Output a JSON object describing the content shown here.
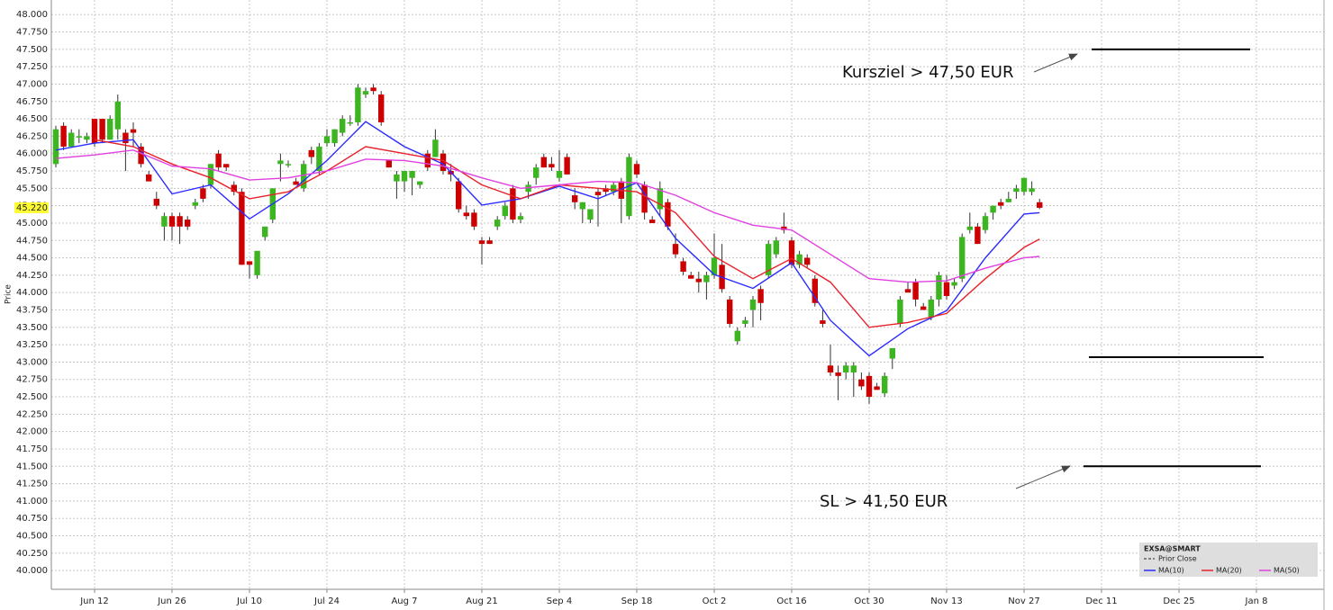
{
  "chart_data": {
    "type": "candlestick",
    "ylabel": "Price",
    "ylim": [
      39.73,
      48.21
    ],
    "yticks": [
      {
        "value": 40,
        "label": "40.000"
      },
      {
        "value": 40.25,
        "label": "40.250"
      },
      {
        "value": 40.5,
        "label": "40.500"
      },
      {
        "value": 40.75,
        "label": "40.750"
      },
      {
        "value": 41,
        "label": "41.000"
      },
      {
        "value": 41.25,
        "label": "41.250"
      },
      {
        "value": 41.5,
        "label": "41.500"
      },
      {
        "value": 41.75,
        "label": "41.750"
      },
      {
        "value": 42,
        "label": "42.000"
      },
      {
        "value": 42.25,
        "label": "42.250"
      },
      {
        "value": 42.5,
        "label": "42.500"
      },
      {
        "value": 42.75,
        "label": "42.750"
      },
      {
        "value": 43,
        "label": "43.000"
      },
      {
        "value": 43.25,
        "label": "43.250"
      },
      {
        "value": 43.5,
        "label": "43.500"
      },
      {
        "value": 43.75,
        "label": "43.750"
      },
      {
        "value": 44,
        "label": "44.000"
      },
      {
        "value": 44.25,
        "label": "44.250"
      },
      {
        "value": 44.5,
        "label": "44.500"
      },
      {
        "value": 44.75,
        "label": "44.750"
      },
      {
        "value": 45,
        "label": "45.000"
      },
      {
        "value": 45.25,
        "label": "45.250"
      },
      {
        "value": 45.5,
        "label": "45.500"
      },
      {
        "value": 45.75,
        "label": "45.750"
      },
      {
        "value": 46,
        "label": "46.000"
      },
      {
        "value": 46.25,
        "label": "46.250"
      },
      {
        "value": 46.5,
        "label": "46.500"
      },
      {
        "value": 46.75,
        "label": "46.750"
      },
      {
        "value": 47,
        "label": "47.000"
      },
      {
        "value": 47.25,
        "label": "47.250"
      },
      {
        "value": 47.5,
        "label": "47.500"
      },
      {
        "value": 47.75,
        "label": "47.750"
      },
      {
        "value": 48,
        "label": "48.000"
      }
    ],
    "xticks": [
      "Jun 12",
      "Jun 26",
      "Jul 10",
      "Jul 24",
      "Aug 7",
      "Aug 21",
      "Sep 4",
      "Sep 18",
      "Oct 2",
      "Oct 16",
      "Oct 30",
      "Nov 13",
      "Nov 27",
      "Dec 11",
      "Dec 25",
      "Jan 8"
    ],
    "grid": true,
    "up_color": "#3cb521",
    "down_color": "#cc0000",
    "x": [
      "Jun 5",
      "Jun 6",
      "Jun 7",
      "Jun 8",
      "Jun 9",
      "Jun 12",
      "Jun 13",
      "Jun 14",
      "Jun 15",
      "Jun 16",
      "Jun 19",
      "Jun 20",
      "Jun 21",
      "Jun 22",
      "Jun 23",
      "Jun 26",
      "Jun 27",
      "Jun 28",
      "Jun 29",
      "Jun 30",
      "Jul 3",
      "Jul 4",
      "Jul 5",
      "Jul 6",
      "Jul 7",
      "Jul 10",
      "Jul 11",
      "Jul 12",
      "Jul 13",
      "Jul 14",
      "Jul 17",
      "Jul 18",
      "Jul 19",
      "Jul 20",
      "Jul 21",
      "Jul 24",
      "Jul 25",
      "Jul 26",
      "Jul 27",
      "Jul 28",
      "Jul 31",
      "Aug 1",
      "Aug 2",
      "Aug 3",
      "Aug 4",
      "Aug 7",
      "Aug 8",
      "Aug 9",
      "Aug 10",
      "Aug 11",
      "Aug 14",
      "Aug 15",
      "Aug 16",
      "Aug 17",
      "Aug 18",
      "Aug 21",
      "Aug 22",
      "Aug 23",
      "Aug 24",
      "Aug 25",
      "Aug 28",
      "Aug 29",
      "Aug 30",
      "Aug 31",
      "Sep 1",
      "Sep 4",
      "Sep 5",
      "Sep 6",
      "Sep 7",
      "Sep 8",
      "Sep 11",
      "Sep 12",
      "Sep 13",
      "Sep 14",
      "Sep 15",
      "Sep 18",
      "Sep 19",
      "Sep 20",
      "Sep 21",
      "Sep 22",
      "Sep 25",
      "Sep 26",
      "Sep 27",
      "Sep 28",
      "Sep 29",
      "Oct 2",
      "Oct 3",
      "Oct 4",
      "Oct 5",
      "Oct 6",
      "Oct 9",
      "Oct 10",
      "Oct 11",
      "Oct 12",
      "Oct 13",
      "Oct 16",
      "Oct 17",
      "Oct 18",
      "Oct 19",
      "Oct 20",
      "Oct 23",
      "Oct 24",
      "Oct 25",
      "Oct 26",
      "Oct 27",
      "Oct 30",
      "Oct 31",
      "Nov 1",
      "Nov 2",
      "Nov 3",
      "Nov 6",
      "Nov 7",
      "Nov 8",
      "Nov 9",
      "Nov 10",
      "Nov 13",
      "Nov 14",
      "Nov 15",
      "Nov 16",
      "Nov 17",
      "Nov 20",
      "Nov 21",
      "Nov 22",
      "Nov 23",
      "Nov 24",
      "Nov 27",
      "Nov 28",
      "Nov 29"
    ],
    "open": [
      45.85,
      46.4,
      46.1,
      46.25,
      46.2,
      46.5,
      46.5,
      46.2,
      46.35,
      46.3,
      46.35,
      46.1,
      45.7,
      45.35,
      44.95,
      45.1,
      45.1,
      45.05,
      45.25,
      45.5,
      45.55,
      46.0,
      45.85,
      45.55,
      45.45,
      44.45,
      44.25,
      44.8,
      45.05,
      45.85,
      45.85,
      45.6,
      45.5,
      46.05,
      45.75,
      46.15,
      46.15,
      46.3,
      46.45,
      46.45,
      46.85,
      46.95,
      46.85,
      45.9,
      45.6,
      45.6,
      45.65,
      45.55,
      46.0,
      45.95,
      46.0,
      45.75,
      45.6,
      45.15,
      45.15,
      44.75,
      44.75,
      44.95,
      45.1,
      45.5,
      45.05,
      45.45,
      45.65,
      45.95,
      45.85,
      45.65,
      45.95,
      45.4,
      45.2,
      45.05,
      45.45,
      45.5,
      45.45,
      45.6,
      45.1,
      45.85,
      45.55,
      45.05,
      45.2,
      45.3,
      44.7,
      44.45,
      44.25,
      44.2,
      44.15,
      44.25,
      44.4,
      43.9,
      43.3,
      43.55,
      43.75,
      44.05,
      44.25,
      44.55,
      44.95,
      44.75,
      44.4,
      44.5,
      44.2,
      43.6,
      42.95,
      42.85,
      42.85,
      42.85,
      42.75,
      42.8,
      42.65,
      42.55,
      43.05,
      43.55,
      44.05,
      44.15,
      43.8,
      43.65,
      43.9,
      44.15,
      44.1,
      44.2,
      44.9,
      44.95,
      44.9,
      45.15,
      45.3,
      45.3,
      45.45,
      45.45,
      45.45,
      45.3
    ],
    "high": [
      46.4,
      46.45,
      46.35,
      46.35,
      46.3,
      46.5,
      46.5,
      46.55,
      46.85,
      46.35,
      46.45,
      46.15,
      45.75,
      45.45,
      45.15,
      45.15,
      45.15,
      45.1,
      45.35,
      45.55,
      45.85,
      46.05,
      45.85,
      45.6,
      45.5,
      44.45,
      44.6,
      44.95,
      45.5,
      46.0,
      45.9,
      45.65,
      45.9,
      46.1,
      46.15,
      46.35,
      46.35,
      46.55,
      46.55,
      47.0,
      46.95,
      47.0,
      46.9,
      45.9,
      45.75,
      45.75,
      45.75,
      45.6,
      46.05,
      46.35,
      46.05,
      45.85,
      45.65,
      45.25,
      45.2,
      44.8,
      44.8,
      45.1,
      45.3,
      45.55,
      45.15,
      45.6,
      45.85,
      46.0,
      45.95,
      46.05,
      46.0,
      45.5,
      45.3,
      45.2,
      45.5,
      45.55,
      45.6,
      45.65,
      46.0,
      45.9,
      45.6,
      45.1,
      45.6,
      45.35,
      44.85,
      44.5,
      44.3,
      44.3,
      44.3,
      44.85,
      44.7,
      43.95,
      43.5,
      43.65,
      43.95,
      44.1,
      44.75,
      44.8,
      45.15,
      44.8,
      44.6,
      44.55,
      44.25,
      43.75,
      43.25,
      42.95,
      43.0,
      43.0,
      42.85,
      42.85,
      42.7,
      42.85,
      43.2,
      43.95,
      44.15,
      44.2,
      43.85,
      43.95,
      44.3,
      44.25,
      44.2,
      44.85,
      45.15,
      45.0,
      45.15,
      45.25,
      45.35,
      45.45,
      45.55,
      45.65,
      45.6,
      45.35
    ],
    "low": [
      45.8,
      46.05,
      46.1,
      46.15,
      46.15,
      46.1,
      46.15,
      46.2,
      46.2,
      45.75,
      46.1,
      45.8,
      45.6,
      45.2,
      44.75,
      44.75,
      44.7,
      44.9,
      45.2,
      45.3,
      45.5,
      45.75,
      45.75,
      45.4,
      44.4,
      44.2,
      44.2,
      44.75,
      45.0,
      45.6,
      45.8,
      45.55,
      45.45,
      45.85,
      45.7,
      46.1,
      46.1,
      46.25,
      46.4,
      46.4,
      46.8,
      46.85,
      46.4,
      45.8,
      45.35,
      45.45,
      45.4,
      45.5,
      45.75,
      45.95,
      45.7,
      45.6,
      45.15,
      45.05,
      44.9,
      44.4,
      44.7,
      44.9,
      45.05,
      45.0,
      45.0,
      45.35,
      45.55,
      45.8,
      45.75,
      45.6,
      45.7,
      45.2,
      45.0,
      45.0,
      44.95,
      45.4,
      45.4,
      45.0,
      45.05,
      45.65,
      45.05,
      45.0,
      45.1,
      44.9,
      44.5,
      44.25,
      44.2,
      44.0,
      43.9,
      44.2,
      44.0,
      43.5,
      43.25,
      43.5,
      43.5,
      43.6,
      44.2,
      44.5,
      44.85,
      44.35,
      44.35,
      44.35,
      43.8,
      43.5,
      42.8,
      42.45,
      42.75,
      42.5,
      42.6,
      42.4,
      42.6,
      42.5,
      42.9,
      43.5,
      44.0,
      43.8,
      43.75,
      43.6,
      43.8,
      43.9,
      44.05,
      44.15,
      44.85,
      44.7,
      44.85,
      45.05,
      45.2,
      45.3,
      45.35,
      45.4,
      45.4,
      45.2
    ],
    "close": [
      46.35,
      46.1,
      46.3,
      46.25,
      46.25,
      46.15,
      46.2,
      46.5,
      46.75,
      46.15,
      46.3,
      45.85,
      45.6,
      45.25,
      45.1,
      44.95,
      44.95,
      44.95,
      45.3,
      45.35,
      45.85,
      45.8,
      45.8,
      45.45,
      44.4,
      44.4,
      44.6,
      44.95,
      45.5,
      45.9,
      45.85,
      45.55,
      45.85,
      45.95,
      46.1,
      46.25,
      46.35,
      46.5,
      46.45,
      46.95,
      46.9,
      46.9,
      46.45,
      45.8,
      45.7,
      45.75,
      45.75,
      45.6,
      45.8,
      46.2,
      45.75,
      45.7,
      45.2,
      45.1,
      44.95,
      44.7,
      44.7,
      45.05,
      45.25,
      45.05,
      45.1,
      45.55,
      45.8,
      45.8,
      45.8,
      45.75,
      45.7,
      45.3,
      45.3,
      45.2,
      45.4,
      45.45,
      45.55,
      45.35,
      45.95,
      45.7,
      45.15,
      45.0,
      45.5,
      44.95,
      44.55,
      44.3,
      44.2,
      44.15,
      44.25,
      44.5,
      44.05,
      43.55,
      43.45,
      43.6,
      43.9,
      43.85,
      44.7,
      44.75,
      44.9,
      44.4,
      44.55,
      44.4,
      43.85,
      43.55,
      42.85,
      42.8,
      42.95,
      42.95,
      42.65,
      42.5,
      42.6,
      42.8,
      43.2,
      43.9,
      44.0,
      43.9,
      43.75,
      43.9,
      44.25,
      43.95,
      44.15,
      44.8,
      44.95,
      44.7,
      45.1,
      45.25,
      45.25,
      45.35,
      45.5,
      45.65,
      45.5,
      45.22
    ],
    "series": [
      {
        "name": "MA(10)",
        "color": "#2b2bff",
        "x": [
          "Jun 5",
          "Jun 12",
          "Jun 19",
          "Jun 26",
          "Jul 3",
          "Jul 10",
          "Jul 17",
          "Jul 24",
          "Jul 31",
          "Aug 7",
          "Aug 14",
          "Aug 21",
          "Aug 28",
          "Sep 4",
          "Sep 11",
          "Sep 18",
          "Sep 25",
          "Oct 2",
          "Oct 9",
          "Oct 16",
          "Oct 23",
          "Oct 30",
          "Nov 6",
          "Nov 13",
          "Nov 20",
          "Nov 27",
          "Nov 29"
        ],
        "values": [
          46.05,
          46.15,
          46.2,
          45.42,
          45.55,
          45.06,
          45.42,
          45.9,
          46.46,
          46.1,
          45.85,
          45.26,
          45.35,
          45.53,
          45.35,
          45.58,
          44.78,
          44.26,
          44.06,
          44.43,
          43.6,
          43.09,
          43.48,
          43.74,
          44.5,
          45.13,
          45.15
        ]
      },
      {
        "name": "MA(20)",
        "color": "#e8202a",
        "x": [
          "Jun 12",
          "Jun 19",
          "Jun 26",
          "Jul 3",
          "Jul 10",
          "Jul 17",
          "Jul 24",
          "Jul 31",
          "Aug 7",
          "Aug 14",
          "Aug 21",
          "Aug 28",
          "Sep 4",
          "Sep 11",
          "Sep 18",
          "Sep 25",
          "Oct 2",
          "Oct 9",
          "Oct 16",
          "Oct 23",
          "Oct 30",
          "Nov 6",
          "Nov 13",
          "Nov 20",
          "Nov 27",
          "Nov 29"
        ],
        "values": [
          46.2,
          46.1,
          45.85,
          45.65,
          45.35,
          45.45,
          45.75,
          46.1,
          46.0,
          45.9,
          45.55,
          45.35,
          45.55,
          45.5,
          45.45,
          45.15,
          44.52,
          44.2,
          44.49,
          44.15,
          43.5,
          43.57,
          43.7,
          44.2,
          44.65,
          44.77
        ]
      },
      {
        "name": "MA(50)",
        "color": "#e040e0",
        "x": [
          "Jun 5",
          "Jun 12",
          "Jun 19",
          "Jun 26",
          "Jul 3",
          "Jul 10",
          "Jul 17",
          "Jul 24",
          "Jul 31",
          "Aug 7",
          "Aug 14",
          "Aug 21",
          "Aug 28",
          "Sep 4",
          "Sep 11",
          "Sep 18",
          "Sep 25",
          "Oct 2",
          "Oct 9",
          "Oct 16",
          "Oct 23",
          "Oct 30",
          "Nov 6",
          "Nov 13",
          "Nov 20",
          "Nov 27",
          "Nov 29"
        ],
        "values": [
          45.93,
          45.98,
          46.05,
          45.82,
          45.78,
          45.62,
          45.65,
          45.75,
          45.92,
          45.9,
          45.82,
          45.65,
          45.5,
          45.55,
          45.6,
          45.58,
          45.4,
          45.15,
          44.97,
          44.9,
          44.55,
          44.2,
          44.15,
          44.17,
          44.35,
          44.5,
          44.52
        ]
      }
    ],
    "last_price": {
      "value": 45.22,
      "label": "45.220"
    },
    "hlines": [
      47.5,
      43.07,
      41.5
    ],
    "annotations": [
      {
        "text": "Kursziel > 47,50 EUR"
      },
      {
        "text": "SL > 41,50 EUR"
      }
    ],
    "legend": {
      "title": "EXSA@SMART",
      "prior_close": "Prior Close",
      "position": "lower right"
    }
  }
}
